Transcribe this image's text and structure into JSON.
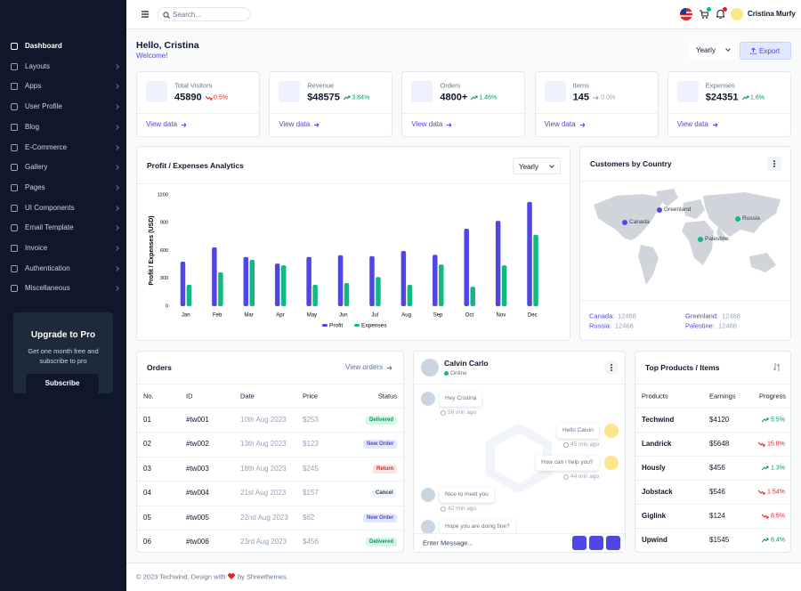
{
  "sidebar": {
    "menu": [
      "Dashboard",
      "Layouts",
      "Apps",
      "User Profile",
      "Blog",
      "E-Commerce",
      "Gallery",
      "Pages",
      "UI Components",
      "Email Template",
      "Invoice",
      "Authentication",
      "Miscellaneous"
    ],
    "upgrade": {
      "title": "Upgrade to Pro",
      "text": "Get one month free and subscribe to pro",
      "button": "Subscribe"
    }
  },
  "header": {
    "search_placeholder": "Search...",
    "user": "Cristina Murfy",
    "greeting": "Hello, Cristina",
    "welcome": "Welcome!",
    "period": "Yearly",
    "export": "Export"
  },
  "stats": [
    {
      "label": "Total Visitors",
      "value": 45890,
      "change": "0.5%",
      "trend": "down",
      "link": "View data"
    },
    {
      "label": "Revenue",
      "value": "$48575",
      "change": "3.84%",
      "trend": "up",
      "link": "View data"
    },
    {
      "label": "Orders",
      "value": "4800+",
      "change": "1.46%",
      "trend": "up",
      "link": "View data"
    },
    {
      "label": "Items",
      "value": 145,
      "change": "0.0%",
      "trend": "flat",
      "link": "View data"
    },
    {
      "label": "Expenses",
      "value": "$24351",
      "change": "1.6%",
      "trend": "up",
      "link": "View data"
    }
  ],
  "chart_data": {
    "type": "bar",
    "title": "Profit / Expenses Analytics",
    "period": "Yearly",
    "y_label": "Profit / Expenses (USD)",
    "categories": [
      "Jan",
      "Feb",
      "Mar",
      "Apr",
      "May",
      "Jun",
      "Jul",
      "Aug",
      "Sep",
      "Oct",
      "Nov",
      "Dec"
    ],
    "series": [
      {
        "name": "Profit",
        "color": "#4f46e5",
        "values": [
          480,
          635,
          530,
          460,
          530,
          550,
          540,
          595,
          555,
          835,
          920,
          1125
        ]
      },
      {
        "name": "Expenses",
        "color": "#10b981",
        "values": [
          230,
          365,
          500,
          440,
          230,
          250,
          315,
          230,
          450,
          210,
          440,
          770
        ]
      }
    ],
    "ylim": [
      0,
      1200
    ],
    "yticks": [
      0,
      300,
      600,
      900,
      1200
    ],
    "grid": false
  },
  "countries": {
    "title": "Customers by Country",
    "markers": [
      {
        "name": "Canada",
        "color": "#4f46e5"
      },
      {
        "name": "Greenland",
        "color": "#4f46e5"
      },
      {
        "name": "Russia",
        "color": "#10b981"
      },
      {
        "name": "Palestine",
        "color": "#10b981"
      }
    ],
    "list": [
      {
        "name": "Canada:",
        "value": 12468
      },
      {
        "name": "Greenland:",
        "value": 12468
      },
      {
        "name": "Russia:",
        "value": 12468
      },
      {
        "name": "Palestine:",
        "value": 12468
      }
    ]
  },
  "orders": {
    "title": "Orders",
    "link": "View orders",
    "columns": [
      "No.",
      "ID",
      "Date",
      "Price",
      "Status"
    ],
    "rows": [
      {
        "no": "01",
        "id": "#tw001",
        "date": "10th Aug 2023",
        "price": "$253",
        "status": "Delivered",
        "status_color": "green"
      },
      {
        "no": "02",
        "id": "#tw002",
        "date": "13th Aug 2023",
        "price": "$123",
        "status": "New Order",
        "status_color": "indigo"
      },
      {
        "no": "03",
        "id": "#tw003",
        "date": "18th Aug 2023",
        "price": "$245",
        "status": "Return",
        "status_color": "red"
      },
      {
        "no": "04",
        "id": "#tw004",
        "date": "21st Aug 2023",
        "price": "$157",
        "status": "Cancel",
        "status_color": "gray"
      },
      {
        "no": "05",
        "id": "#tw005",
        "date": "22nd Aug 2023",
        "price": "$62",
        "status": "New Order",
        "status_color": "indigo"
      },
      {
        "no": "06",
        "id": "#tw006",
        "date": "23rd Aug 2023",
        "price": "$456",
        "status": "Delivered",
        "status_color": "green"
      }
    ]
  },
  "chat": {
    "name": "Calvin Carlo",
    "status": "Online",
    "placeholder": "Enter Message...",
    "messages": [
      {
        "text": "Hey Cristina",
        "time": "59 min ago",
        "side": "left"
      },
      {
        "text": "Hello Calvin",
        "time": "45 min ago",
        "side": "right"
      },
      {
        "text": "How can i help you?",
        "time": "44 min ago",
        "side": "right"
      },
      {
        "text": "Nice to meet you",
        "time": "42 min ago",
        "side": "left"
      },
      {
        "text": "Hope you are doing fine?",
        "side": "left"
      }
    ]
  },
  "products": {
    "title": "Top Products / Items",
    "columns": [
      "Products",
      "Earnings",
      "Progress"
    ],
    "rows": [
      {
        "name": "Techwind",
        "earnings": "$4120",
        "progress": "5.5%",
        "trend": "up"
      },
      {
        "name": "Landrick",
        "earnings": "$5648",
        "progress": "15.8%",
        "trend": "down"
      },
      {
        "name": "Hously",
        "earnings": "$456",
        "progress": "1.3%",
        "trend": "up"
      },
      {
        "name": "Jobstack",
        "earnings": "$546",
        "progress": "1.54%",
        "trend": "down"
      },
      {
        "name": "Giglink",
        "earnings": "$124",
        "progress": "8.5%",
        "trend": "down"
      },
      {
        "name": "Upwind",
        "earnings": "$1545",
        "progress": "6.4%",
        "trend": "up"
      }
    ]
  },
  "footer": {
    "left": "© 2023 Techwind. Design with",
    "right": "by Shreethemes."
  }
}
